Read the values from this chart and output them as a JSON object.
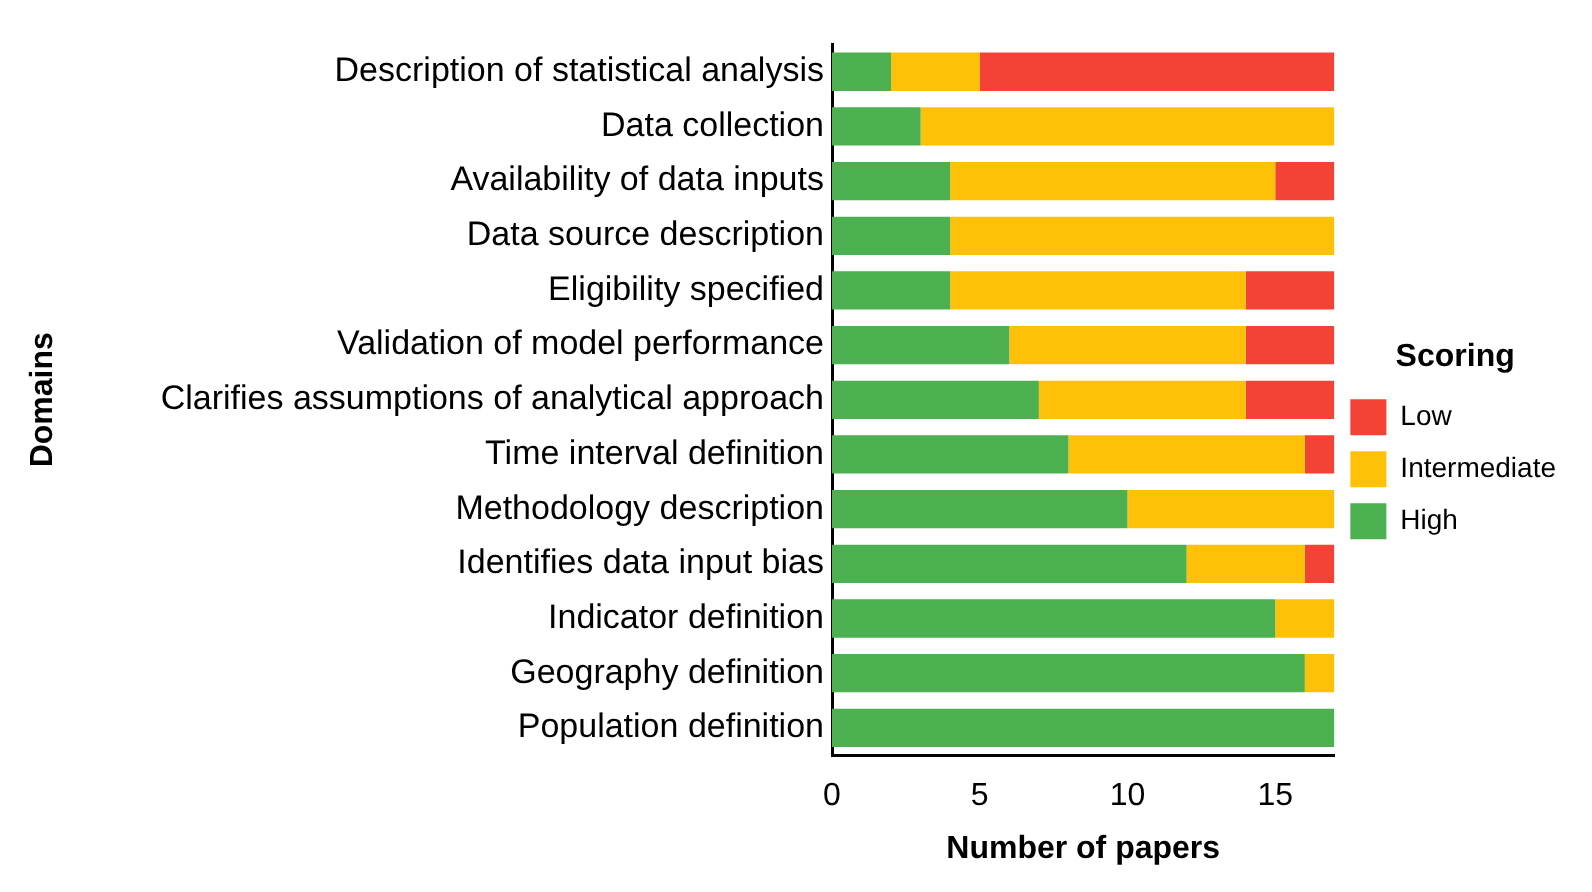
{
  "chart_data": {
    "type": "bar",
    "orientation": "horizontal",
    "stacked": true,
    "xlabel": "Number of papers",
    "ylabel": "Domains",
    "legend_title": "Scoring",
    "legend": "right",
    "grid": false,
    "categories": [
      "Description of statistical analysis",
      "Data collection",
      "Availability of data inputs",
      "Data source description",
      "Eligibility specified",
      "Validation of model performance",
      "Clarifies assumptions of analytical approach",
      "Time interval definition",
      "Methodology description",
      "Identifies data input bias",
      "Indicator definition",
      "Geography definition",
      "Population definition"
    ],
    "xlim": [
      0,
      17
    ],
    "xticks": [
      0,
      5,
      10,
      15
    ],
    "series": [
      {
        "name": "High",
        "color": "#4caf50",
        "values": [
          2,
          3,
          4,
          4,
          4,
          6,
          7,
          8,
          10,
          12,
          15,
          16,
          17
        ]
      },
      {
        "name": "Intermediate",
        "color": "#ffc107",
        "values": [
          3,
          14,
          11,
          13,
          10,
          8,
          7,
          8,
          7,
          4,
          2,
          1,
          0
        ]
      },
      {
        "name": "Low",
        "color": "#f44336",
        "values": [
          12,
          0,
          2,
          0,
          3,
          3,
          3,
          1,
          0,
          1,
          0,
          0,
          0
        ]
      }
    ]
  }
}
